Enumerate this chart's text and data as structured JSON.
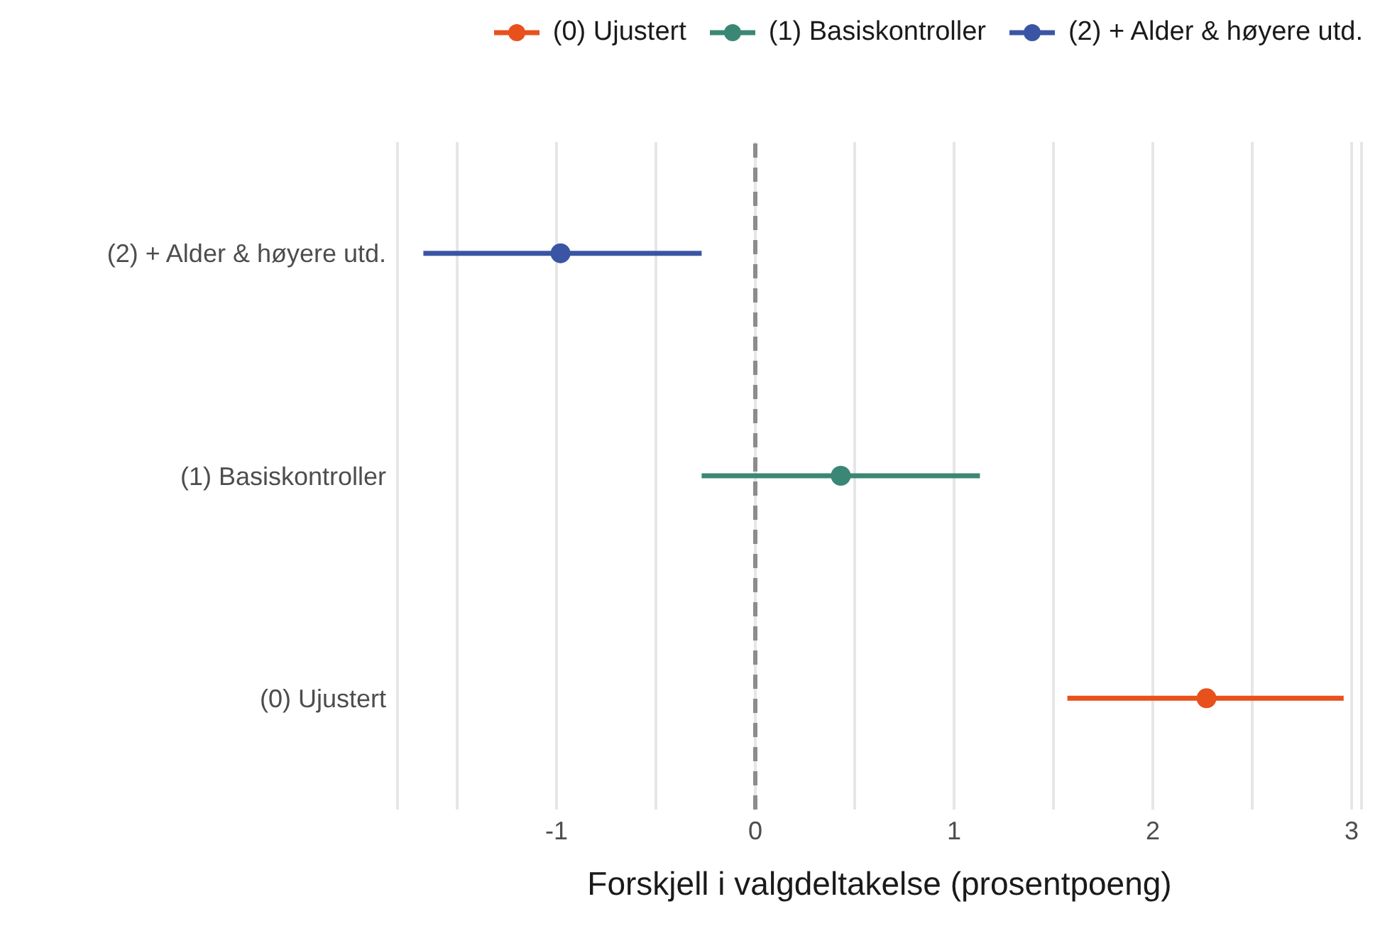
{
  "chart_data": {
    "type": "scatter",
    "orientation": "horizontal",
    "xlabel": "Forskjell i valgdeltakelse (prosentpoeng)",
    "categories": [
      "(2) + Alder & høyere utd.",
      "(1) Basiskontroller",
      "(0) Ujustert"
    ],
    "series": [
      {
        "name": "(0) Ujustert",
        "color": "#e8501c",
        "values": [
          null,
          null,
          2.27
        ],
        "errors": [
          null,
          null,
          [
            1.57,
            2.96
          ]
        ]
      },
      {
        "name": "(1) Basiskontroller",
        "color": "#3a8775",
        "values": [
          null,
          0.43,
          null
        ],
        "errors": [
          null,
          [
            -0.27,
            1.13
          ],
          null
        ]
      },
      {
        "name": "(2) + Alder & høyere utd.",
        "color": "#3a55a4",
        "values": [
          -0.98,
          null,
          null
        ],
        "errors": [
          [
            -1.67,
            -0.27
          ],
          null,
          null
        ]
      }
    ],
    "xlim": [
      -1.8,
      3.05
    ],
    "xticks": [
      {
        "value": -1.5,
        "label": null
      },
      -1,
      {
        "value": -0.5,
        "label": null
      },
      0,
      {
        "value": 0.5,
        "label": null
      },
      1,
      {
        "value": 1.5,
        "label": null
      },
      2,
      {
        "value": 2.5,
        "label": null
      },
      3
    ],
    "ref_lines": [
      {
        "axis": "x",
        "value": 0,
        "label": null,
        "color": "#8c8c8c",
        "line_style": "dashed"
      }
    ],
    "grid": "x",
    "legend": "top right",
    "marker": "circle"
  }
}
